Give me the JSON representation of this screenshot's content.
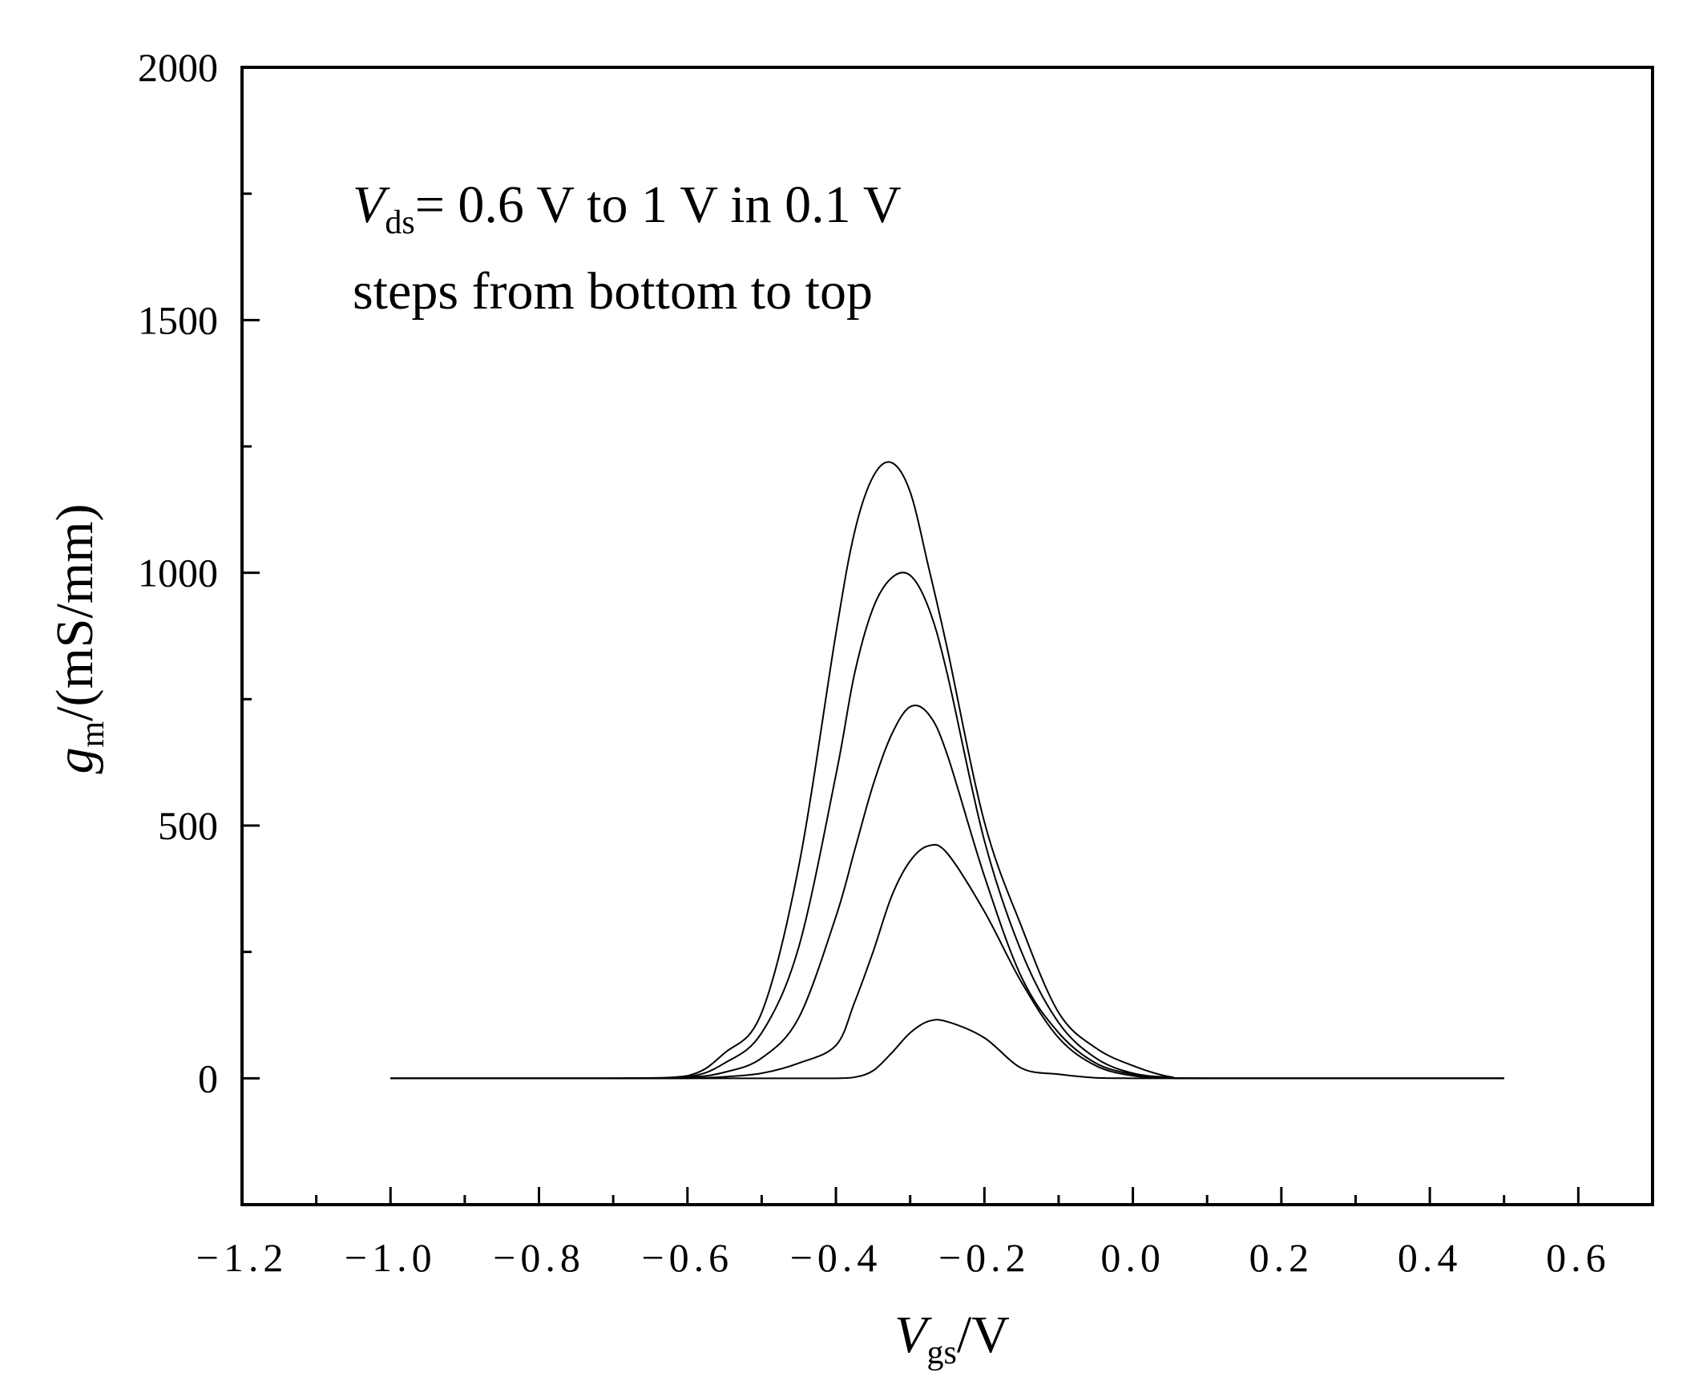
{
  "chart_data": {
    "type": "line",
    "title": "",
    "xlabel": {
      "main": "V",
      "sub": "gs",
      "rest": "/V"
    },
    "ylabel": {
      "main": "g",
      "sub": "m",
      "rest": "/(mS/mm)"
    },
    "xlim": [
      -1.2,
      0.7
    ],
    "ylim": [
      -250,
      2000
    ],
    "xticks": [
      -1.2,
      -1.0,
      -0.8,
      -0.6,
      -0.4,
      -0.2,
      0.0,
      0.2,
      0.4,
      0.6
    ],
    "xtick_labels": [
      "-1.2",
      "-1.0",
      "-0.8",
      "-0.6",
      "-0.4",
      "-0.2",
      "0.0",
      "0.2",
      "0.4",
      "0.6"
    ],
    "yticks": [
      0,
      500,
      1000,
      1500,
      2000
    ],
    "ytick_labels": [
      "0",
      "500",
      "1000",
      "1500",
      "2000"
    ],
    "grid": false,
    "annotation": {
      "v": "V",
      "sub": "ds",
      "line1_rest": "= 0.6 V to 1 V in 0.1 V",
      "line2": "steps from bottom to top"
    },
    "x": [
      -1.0,
      -0.7,
      -0.6,
      -0.55,
      -0.5,
      -0.45,
      -0.4,
      -0.375,
      -0.35,
      -0.325,
      -0.3,
      -0.275,
      -0.25,
      -0.2,
      -0.15,
      -0.1,
      -0.05,
      0,
      0.05,
      0.1,
      0.5
    ],
    "series": [
      {
        "name": "Vds = 0.6 V",
        "values": [
          0,
          0,
          0,
          0,
          0,
          0,
          0,
          2,
          15,
          50,
          90,
          113,
          112,
          80,
          20,
          8,
          1,
          0,
          0,
          0,
          0
        ]
      },
      {
        "name": "Vds = 0.7 V",
        "values": [
          0,
          0,
          0,
          3,
          10,
          30,
          65,
          150,
          250,
          360,
          430,
          460,
          445,
          330,
          190,
          80,
          25,
          5,
          1,
          0,
          0
        ]
      },
      {
        "name": "Vds = 0.8 V",
        "values": [
          0,
          0,
          2,
          12,
          40,
          120,
          320,
          450,
          580,
          680,
          735,
          720,
          640,
          400,
          200,
          90,
          30,
          8,
          1,
          0,
          0
        ]
      },
      {
        "name": "Vds = 0.9 V",
        "values": [
          0,
          0,
          3,
          30,
          90,
          260,
          600,
          800,
          930,
          990,
          995,
          930,
          800,
          470,
          250,
          110,
          40,
          10,
          2,
          0,
          0
        ]
      },
      {
        "name": "Vds = 1.0 V",
        "values": [
          0,
          0,
          5,
          50,
          130,
          420,
          880,
          1080,
          1190,
          1218,
          1160,
          1010,
          850,
          507,
          300,
          130,
          60,
          25,
          3,
          0,
          0
        ]
      }
    ]
  }
}
